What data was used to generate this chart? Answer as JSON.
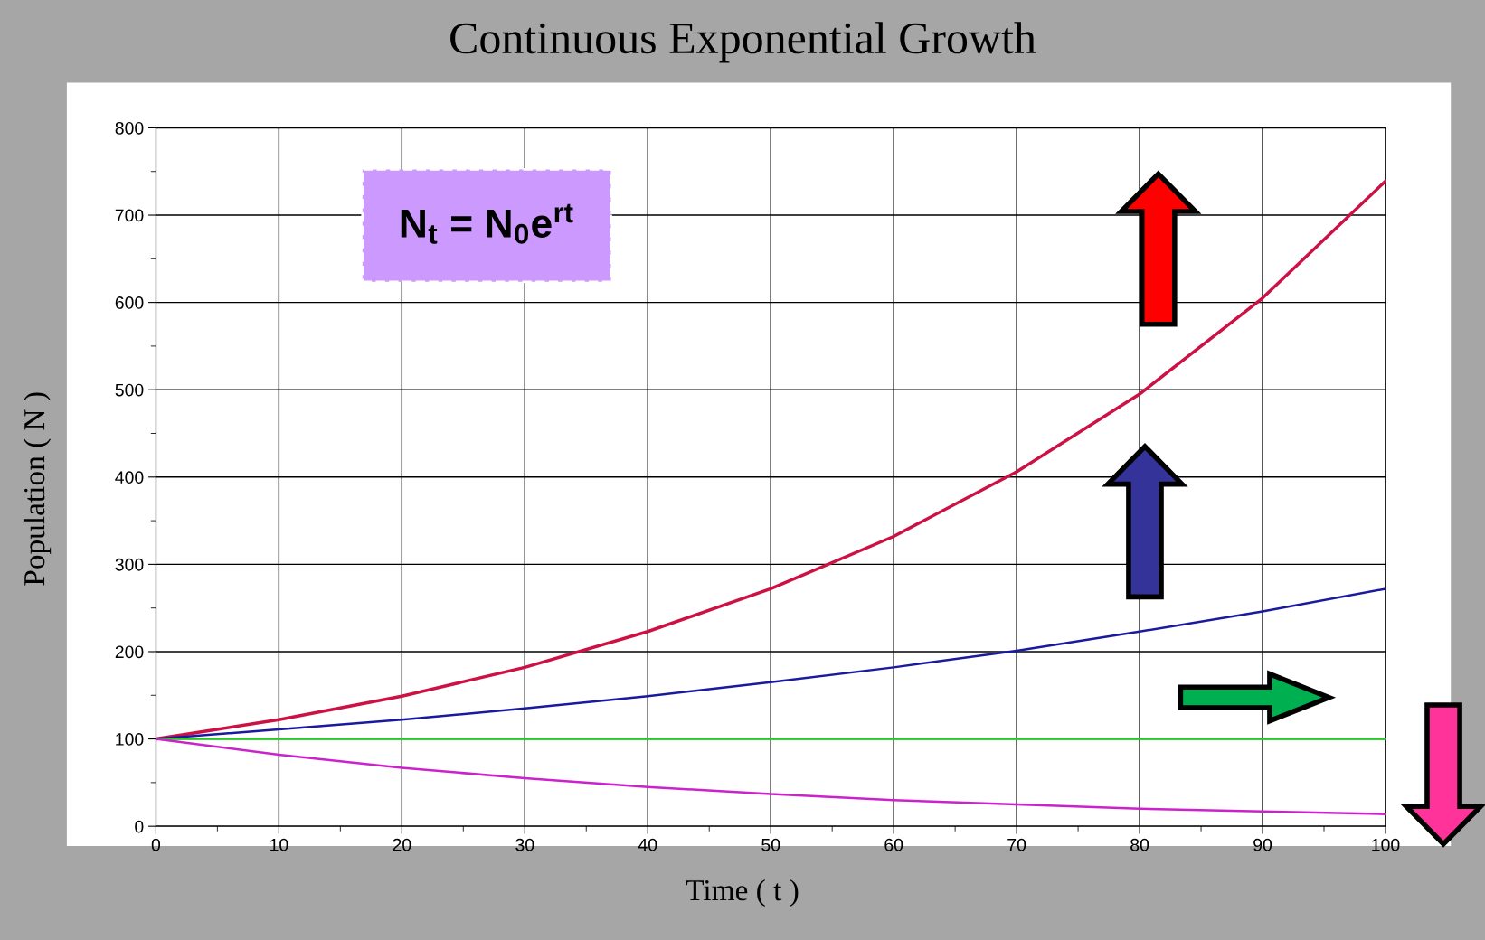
{
  "chart_data": {
    "type": "line",
    "title": "Continuous Exponential Growth",
    "xlabel": "Time ( t )",
    "ylabel": "Population ( N )",
    "x": [
      0,
      10,
      20,
      30,
      40,
      50,
      60,
      70,
      80,
      90,
      100
    ],
    "series": [
      {
        "color": "#cc1144",
        "values": [
          100,
          122,
          149,
          182,
          223,
          272,
          332,
          406,
          495,
          605,
          739
        ]
      },
      {
        "color": "#1a1aa0",
        "values": [
          100,
          111,
          122,
          135,
          149,
          165,
          182,
          201,
          223,
          246,
          272
        ]
      },
      {
        "color": "#22cc22",
        "values": [
          100,
          100,
          100,
          100,
          100,
          100,
          100,
          100,
          100,
          100,
          100
        ]
      },
      {
        "color": "#cc22cc",
        "values": [
          100,
          82,
          67,
          55,
          45,
          37,
          30,
          25,
          20,
          17,
          14
        ]
      }
    ],
    "xlim": [
      0,
      100
    ],
    "xticks": [
      0,
      10,
      20,
      30,
      40,
      50,
      60,
      70,
      80,
      90,
      100
    ],
    "ylim": [
      0,
      800
    ],
    "yticks": [
      0,
      100,
      200,
      300,
      400,
      500,
      600,
      700,
      800
    ],
    "grid": true,
    "marker": "none",
    "line_style": "solid",
    "annotations": [
      "N$_{t}$ = N$_{0}$e$^{rt}$"
    ]
  }
}
